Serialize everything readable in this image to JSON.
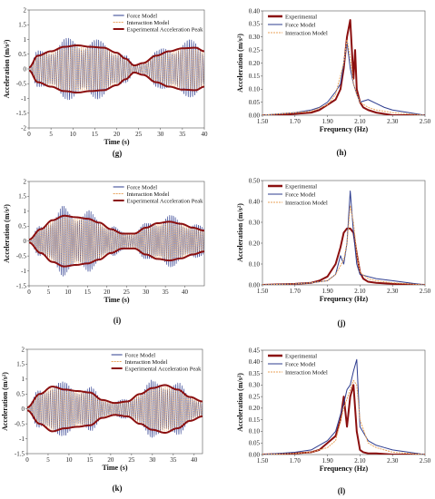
{
  "chart_data": [
    {
      "type": "line",
      "panel": "g",
      "caption": "(g)",
      "xlabel": "Time (s)",
      "ylabel": "Acceleration (m/s²)",
      "xlim": [
        0,
        40
      ],
      "ylim": [
        -2,
        2
      ],
      "xticks": [
        "0",
        "5",
        "10",
        "15",
        "20",
        "25",
        "30",
        "35",
        "40"
      ],
      "yticks": [
        "2",
        "1.5",
        "1",
        "0.5",
        "0",
        "-0.5",
        "-1",
        "-1.5",
        "-2"
      ],
      "legend_position": "top-right",
      "series": [
        {
          "name": "Force Model",
          "color": "#2e3d8f",
          "style": "oscillation"
        },
        {
          "name": "Interaction Model",
          "color": "#e8a25a",
          "style": "oscillation"
        },
        {
          "name": "Experimental Acceleration Peak",
          "color": "#8b0f0f",
          "style": "envelope"
        }
      ],
      "envelope_time": [
        0,
        2,
        5,
        8,
        11,
        14,
        17,
        20,
        22,
        24,
        26,
        29,
        32,
        35,
        38,
        40
      ],
      "envelope_values": [
        0.05,
        0.45,
        0.6,
        0.75,
        0.8,
        0.75,
        0.72,
        0.55,
        0.35,
        0.12,
        0.2,
        0.45,
        0.6,
        0.7,
        0.72,
        0.6
      ]
    },
    {
      "type": "line",
      "panel": "h",
      "caption": "(h)",
      "xlabel": "Frequency (Hz)",
      "ylabel": "Acceleration (m/s²)",
      "xlim": [
        1.5,
        2.5
      ],
      "ylim": [
        0,
        0.4
      ],
      "xticks": [
        "1.50",
        "1.70",
        "1.90",
        "2.10",
        "2.30",
        "2.50"
      ],
      "yticks": [
        "0.40",
        "0.35",
        "0.30",
        "0.25",
        "0.20",
        "0.15",
        "0.10",
        "0.05",
        "0.00"
      ],
      "legend_position": "top-left",
      "series": [
        {
          "name": "Experimental",
          "color": "#8b0f0f",
          "x": [
            1.5,
            1.6,
            1.7,
            1.8,
            1.85,
            1.9,
            1.95,
            1.98,
            2.0,
            2.02,
            2.04,
            2.06,
            2.07,
            2.08,
            2.1,
            2.12,
            2.15,
            2.2,
            2.3,
            2.4,
            2.5
          ],
          "y": [
            0.0,
            0.0,
            0.005,
            0.01,
            0.02,
            0.04,
            0.06,
            0.1,
            0.18,
            0.3,
            0.365,
            0.14,
            0.25,
            0.1,
            0.05,
            0.03,
            0.02,
            0.01,
            0.0,
            0.0,
            0.0
          ]
        },
        {
          "name": "Force Model",
          "color": "#2e3d8f",
          "x": [
            1.5,
            1.6,
            1.7,
            1.8,
            1.85,
            1.9,
            1.95,
            1.98,
            2.0,
            2.02,
            2.04,
            2.06,
            2.08,
            2.1,
            2.15,
            2.2,
            2.25,
            2.3,
            2.4,
            2.5
          ],
          "y": [
            0.0,
            0.005,
            0.01,
            0.02,
            0.03,
            0.05,
            0.09,
            0.12,
            0.2,
            0.28,
            0.18,
            0.12,
            0.08,
            0.05,
            0.06,
            0.045,
            0.03,
            0.02,
            0.01,
            0.0
          ]
        },
        {
          "name": "Interaction Model",
          "color": "#e8a25a",
          "x": [
            1.5,
            1.6,
            1.7,
            1.8,
            1.9,
            1.95,
            2.0,
            2.02,
            2.04,
            2.06,
            2.08,
            2.1,
            2.15,
            2.2,
            2.3,
            2.5
          ],
          "y": [
            0.0,
            0.005,
            0.01,
            0.015,
            0.04,
            0.08,
            0.2,
            0.29,
            0.22,
            0.12,
            0.08,
            0.05,
            0.03,
            0.02,
            0.01,
            0.0
          ]
        }
      ]
    },
    {
      "type": "line",
      "panel": "i",
      "caption": "(i)",
      "xlabel": "Time (s)",
      "ylabel": "Acceleration (m/s²)",
      "xlim": [
        0,
        45
      ],
      "ylim": [
        -1.5,
        2
      ],
      "xticks": [
        "0",
        "5",
        "10",
        "15",
        "20",
        "25",
        "30",
        "35",
        "40"
      ],
      "yticks": [
        "2",
        "1.5",
        "1",
        "0.5",
        "0",
        "-0.5",
        "-1",
        "-1.5"
      ],
      "legend_position": "top-right",
      "series": [
        {
          "name": "Force Model",
          "color": "#2e3d8f",
          "style": "oscillation"
        },
        {
          "name": "Interaction Model",
          "color": "#e8a25a",
          "style": "oscillation"
        },
        {
          "name": "Experimental Acceleration Peak",
          "color": "#8b0f0f",
          "style": "envelope"
        }
      ],
      "envelope_time": [
        0,
        3,
        6,
        9,
        12,
        15,
        18,
        21,
        24,
        27,
        30,
        33,
        36,
        39,
        42,
        45
      ],
      "envelope_values": [
        0.05,
        0.4,
        0.7,
        0.85,
        0.8,
        0.75,
        0.62,
        0.4,
        0.25,
        0.25,
        0.45,
        0.6,
        0.65,
        0.58,
        0.45,
        0.35
      ]
    },
    {
      "type": "line",
      "panel": "j",
      "caption": "(j)",
      "xlabel": "Frequency (Hz)",
      "ylabel": "Acceleration (m/s²)",
      "xlim": [
        1.5,
        2.5
      ],
      "ylim": [
        0,
        0.5
      ],
      "xticks": [
        "1.50",
        "1.70",
        "1.90",
        "2.10",
        "2.30",
        "2.50"
      ],
      "yticks": [
        "0.50",
        "0.40",
        "0.30",
        "0.20",
        "0.10",
        "0.00"
      ],
      "legend_position": "top-left",
      "series": [
        {
          "name": "Experimental",
          "color": "#8b0f0f",
          "x": [
            1.5,
            1.7,
            1.8,
            1.85,
            1.9,
            1.95,
            1.98,
            2.0,
            2.02,
            2.04,
            2.06,
            2.08,
            2.1,
            2.12,
            2.15,
            2.2,
            2.3,
            2.5
          ],
          "y": [
            0.0,
            0.005,
            0.01,
            0.02,
            0.04,
            0.1,
            0.18,
            0.25,
            0.27,
            0.27,
            0.25,
            0.15,
            0.06,
            0.03,
            0.015,
            0.01,
            0.005,
            0.0
          ]
        },
        {
          "name": "Force Model",
          "color": "#2e3d8f",
          "x": [
            1.5,
            1.7,
            1.8,
            1.9,
            1.95,
            1.98,
            2.0,
            2.02,
            2.04,
            2.06,
            2.08,
            2.1,
            2.15,
            2.2,
            2.3,
            2.4,
            2.5
          ],
          "y": [
            0.0,
            0.005,
            0.01,
            0.02,
            0.05,
            0.14,
            0.1,
            0.2,
            0.45,
            0.25,
            0.1,
            0.05,
            0.04,
            0.03,
            0.02,
            0.01,
            0.0
          ]
        },
        {
          "name": "Interaction Model",
          "color": "#e8a25a",
          "x": [
            1.5,
            1.7,
            1.8,
            1.9,
            1.95,
            2.0,
            2.02,
            2.04,
            2.06,
            2.08,
            2.1,
            2.15,
            2.2,
            2.3,
            2.5
          ],
          "y": [
            0.0,
            0.005,
            0.01,
            0.02,
            0.05,
            0.12,
            0.2,
            0.38,
            0.3,
            0.15,
            0.06,
            0.03,
            0.02,
            0.01,
            0.0
          ]
        }
      ]
    },
    {
      "type": "line",
      "panel": "k",
      "caption": "(k)",
      "xlabel": "Time (s)",
      "ylabel": "Acceleration (m/s²)",
      "xlim": [
        0,
        42
      ],
      "ylim": [
        -1.5,
        2
      ],
      "xticks": [
        "0",
        "5",
        "10",
        "15",
        "20",
        "25",
        "30",
        "35",
        "40"
      ],
      "yticks": [
        "2",
        "1.5",
        "1",
        "0.5",
        "0",
        "-0.5",
        "-1",
        "-1.5"
      ],
      "legend_position": "top-right",
      "series": [
        {
          "name": "Force Model",
          "color": "#2e3d8f",
          "style": "oscillation"
        },
        {
          "name": "Interaction Model",
          "color": "#e8a25a",
          "style": "oscillation"
        },
        {
          "name": "Experimental Acceleration Peak",
          "color": "#8b0f0f",
          "style": "envelope"
        }
      ],
      "envelope_time": [
        0,
        3,
        6,
        9,
        12,
        15,
        18,
        21,
        24,
        27,
        30,
        33,
        36,
        39,
        42
      ],
      "envelope_values": [
        0.05,
        0.5,
        0.75,
        0.65,
        0.6,
        0.55,
        0.3,
        0.2,
        0.25,
        0.5,
        0.7,
        0.8,
        0.65,
        0.4,
        0.25
      ]
    },
    {
      "type": "line",
      "panel": "l",
      "caption": "(l)",
      "xlabel": "Frequency (Hz)",
      "ylabel": "Acceleration (m/s²)",
      "xlim": [
        1.5,
        2.5
      ],
      "ylim": [
        0,
        0.45
      ],
      "xticks": [
        "1.50",
        "1.70",
        "1.90",
        "2.10",
        "2.30",
        "2.50"
      ],
      "yticks": [
        "0.45",
        "0.40",
        "0.35",
        "0.30",
        "0.25",
        "0.20",
        "0.15",
        "0.10",
        "0.05",
        "0.00"
      ],
      "legend_position": "top-left",
      "series": [
        {
          "name": "Experimental",
          "color": "#8b0f0f",
          "x": [
            1.5,
            1.7,
            1.8,
            1.85,
            1.9,
            1.95,
            1.98,
            2.0,
            2.02,
            2.04,
            2.06,
            2.08,
            2.1,
            2.12,
            2.15,
            2.2,
            2.3,
            2.5
          ],
          "y": [
            0.0,
            0.005,
            0.01,
            0.02,
            0.05,
            0.08,
            0.15,
            0.25,
            0.12,
            0.25,
            0.3,
            0.1,
            0.02,
            0.01,
            0.005,
            0.005,
            0.0,
            0.0
          ]
        },
        {
          "name": "Force Model",
          "color": "#2e3d8f",
          "x": [
            1.5,
            1.6,
            1.7,
            1.8,
            1.9,
            1.95,
            2.0,
            2.02,
            2.04,
            2.06,
            2.08,
            2.1,
            2.15,
            2.2,
            2.25,
            2.3,
            2.5
          ],
          "y": [
            0.0,
            0.005,
            0.01,
            0.02,
            0.06,
            0.1,
            0.22,
            0.28,
            0.3,
            0.36,
            0.41,
            0.12,
            0.06,
            0.04,
            0.03,
            0.02,
            0.0
          ]
        },
        {
          "name": "Interaction Model",
          "color": "#e8a25a",
          "x": [
            1.5,
            1.7,
            1.8,
            1.9,
            1.95,
            2.0,
            2.02,
            2.04,
            2.06,
            2.08,
            2.1,
            2.15,
            2.2,
            2.3,
            2.5
          ],
          "y": [
            0.0,
            0.005,
            0.01,
            0.03,
            0.06,
            0.2,
            0.24,
            0.28,
            0.32,
            0.3,
            0.15,
            0.05,
            0.03,
            0.01,
            0.0
          ]
        }
      ]
    }
  ]
}
